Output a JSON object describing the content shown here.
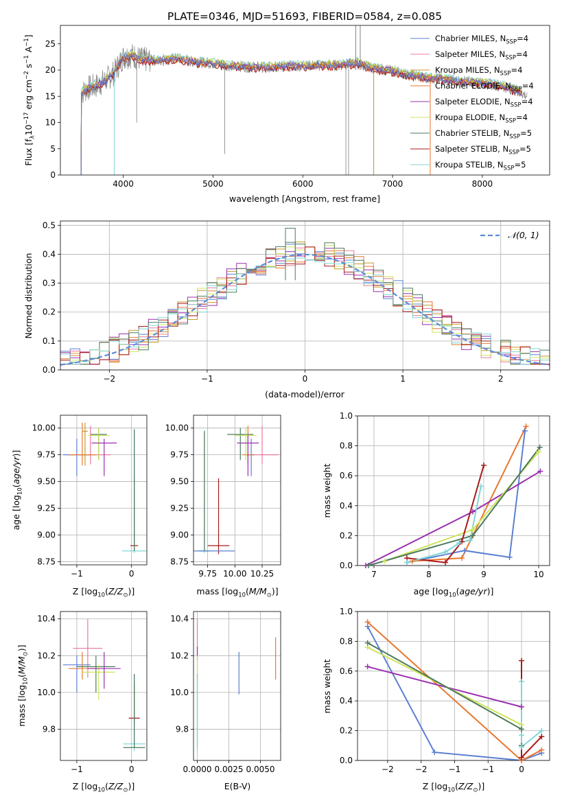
{
  "title": "PLATE=0346, MJD=51693, FIBERID=0584, z=0.085",
  "colors": {
    "chabrier_miles": "#5b7fd1",
    "salpeter_miles": "#e8789e",
    "kroupa_miles": "#c49a2c",
    "chabrier_elodie": "#e8772e",
    "salpeter_elodie": "#9b2fae",
    "kroupa_elodie": "#cfe35a",
    "chabrier_stelib": "#4a7a5a",
    "salpeter_stelib": "#a81818",
    "kroupa_stelib": "#7fd6d6",
    "data": "#7f7f7f",
    "normal": "#5b8bd6"
  },
  "chart_data": [
    {
      "id": "spectrum",
      "type": "line",
      "title": "PLATE=0346, MJD=51693, FIBERID=0584, z=0.085",
      "xlabel": "wavelength [Angstrom, rest frame]",
      "ylabel": "Flux [f_λ 10^-17 erg cm^-2 s^-1 A^-1]",
      "xlim": [
        3300,
        8750
      ],
      "ylim": [
        0,
        28.5
      ],
      "xticks": [
        4000,
        5000,
        6000,
        7000,
        8000
      ],
      "yticks": [
        0,
        5,
        10,
        15,
        20,
        25
      ],
      "grid": false,
      "legend_position": "top-right",
      "legend": [
        "Chabrier MILES, N_SSP=4",
        "Salpeter MILES, N_SSP=4",
        "Kroupa MILES, N_SSP=4",
        "Chabrier ELODIE, N_SSP=4",
        "Salpeter ELODIE, N_SSP=4",
        "Kroupa ELODIE, N_SSP=4",
        "Chabrier STELIB, N_SSP=5",
        "Salpeter STELIB, N_SSP=5",
        "Kroupa STELIB, N_SSP=5"
      ],
      "data_envelope": {
        "x": [
          3530,
          3600,
          3700,
          3800,
          3900,
          4000,
          4100,
          4200,
          4400,
          4600,
          4800,
          5000,
          5200,
          5400,
          5600,
          5800,
          6000,
          6200,
          6400,
          6600,
          6800,
          7000,
          7200,
          7400,
          7600,
          7800,
          8000,
          8200,
          8400,
          8500
        ],
        "y": [
          15.5,
          16.5,
          17.0,
          18.0,
          19.5,
          22.5,
          22.8,
          22.0,
          21.8,
          22.2,
          21.5,
          21.3,
          20.8,
          20.6,
          20.5,
          20.7,
          20.8,
          20.9,
          20.9,
          21.3,
          20.3,
          19.8,
          19.0,
          18.5,
          18.2,
          17.8,
          17.5,
          17.0,
          16.0,
          15.0
        ]
      }
    },
    {
      "id": "residuals",
      "type": "line",
      "xlabel": "(data-model)/error",
      "ylabel": "Normed distribution",
      "xlim": [
        -2.5,
        2.5
      ],
      "ylim": [
        0,
        0.515
      ],
      "xticks": [
        -2,
        -1,
        0,
        1,
        2
      ],
      "yticks": [
        0.0,
        0.1,
        0.2,
        0.3,
        0.4,
        0.5
      ],
      "grid": true,
      "legend_position": "top-right",
      "legend": [
        "𝒩(0, 1)"
      ],
      "normal": {
        "mean": 0,
        "sigma": 1
      }
    },
    {
      "id": "age_vs_Z",
      "type": "scatter",
      "xlabel": "Z [log10(Z/Z⊙)]",
      "ylabel": "age  [log10(age/yr)]",
      "xlim": [
        -1.3,
        0.28
      ],
      "ylim": [
        8.72,
        10.12
      ],
      "xticks": [
        -1,
        0
      ],
      "yticks": [
        8.75,
        9.0,
        9.25,
        9.5,
        9.75,
        10.0
      ],
      "grid": true,
      "points": [
        {
          "model": "salpeter_miles",
          "x": -0.75,
          "y": 9.75,
          "xerr": 0.37,
          "yerr": [
            9.66,
            10.02
          ]
        },
        {
          "model": "chabrier_miles",
          "x": -1.0,
          "y": 9.75,
          "xerr": 0.25,
          "yerr": [
            9.55,
            9.9
          ]
        },
        {
          "model": "chabrier_elodie",
          "x": -0.9,
          "y": 9.75,
          "xerr": 0.25,
          "yerr": [
            9.65,
            10.05
          ]
        },
        {
          "model": "kroupa_miles",
          "x": -0.85,
          "y": 9.97,
          "xerr": 0.05,
          "yerr": [
            9.65,
            10.05
          ]
        },
        {
          "model": "chabrier_stelib",
          "x": -0.6,
          "y": 9.94,
          "xerr": 0.15,
          "yerr": [
            9.7,
            10.0
          ]
        },
        {
          "model": "kroupa_elodie",
          "x": -0.6,
          "y": 9.93,
          "xerr": 0.2,
          "yerr": [
            9.7,
            10.0
          ]
        },
        {
          "model": "salpeter_elodie",
          "x": -0.5,
          "y": 9.86,
          "xerr": 0.23,
          "yerr": [
            9.55,
            9.9
          ]
        },
        {
          "model": "salpeter_stelib",
          "x": 0.05,
          "y": 8.9,
          "xerr": 0.07,
          "yerr": [
            8.85,
            9.53
          ]
        },
        {
          "model": "kroupa_stelib",
          "x": 0.05,
          "y": 8.85,
          "xerr": 0.22,
          "yerr": [
            8.83,
            9.98
          ]
        },
        {
          "model": "chabrier_stelib",
          "x": 0.05,
          "y": 9.97,
          "xerr": 0.0,
          "yerr": [
            8.85,
            9.99
          ]
        }
      ]
    },
    {
      "id": "age_vs_mass",
      "type": "scatter",
      "xlabel": "mass [log10(M/M⊙)]",
      "ylabel": "",
      "xlim": [
        9.62,
        10.42
      ],
      "ylim": [
        8.72,
        10.12
      ],
      "xticks": [
        9.75,
        10.0,
        10.25
      ],
      "xticklabels": [
        "9.75",
        "10.00",
        "10.25"
      ],
      "yticks": [
        8.75,
        9.0,
        9.25,
        9.5,
        9.75,
        10.0
      ],
      "grid": true,
      "points": [
        {
          "model": "salpeter_miles",
          "x": 10.25,
          "y": 9.75,
          "xerr": 0.15,
          "yerr": [
            9.66,
            10.02
          ]
        },
        {
          "model": "chabrier_miles",
          "x": 10.15,
          "y": 9.75,
          "xerr": 0.03,
          "yerr": [
            9.55,
            9.9
          ]
        },
        {
          "model": "chabrier_elodie",
          "x": 10.12,
          "y": 9.75,
          "xerr": 0.05,
          "yerr": [
            9.65,
            10.02
          ]
        },
        {
          "model": "chabrier_stelib",
          "x": 10.05,
          "y": 9.94,
          "xerr": 0.12,
          "yerr": [
            9.7,
            10.0
          ]
        },
        {
          "model": "kroupa_elodie",
          "x": 10.1,
          "y": 9.93,
          "xerr": 0.1,
          "yerr": [
            9.7,
            10.0
          ]
        },
        {
          "model": "salpeter_elodie",
          "x": 10.12,
          "y": 9.86,
          "xerr": 0.1,
          "yerr": [
            9.55,
            9.93
          ]
        },
        {
          "model": "salpeter_stelib",
          "x": 9.85,
          "y": 8.9,
          "xerr": 0.1,
          "yerr": [
            8.82,
            9.53
          ]
        },
        {
          "model": "kroupa_stelib",
          "x": 9.72,
          "y": 8.85,
          "xerr": 0.06,
          "yerr": [
            8.83,
            9.98
          ]
        },
        {
          "model": "chabrier_stelib",
          "x": 9.72,
          "y": 8.85,
          "xerr": 0.04,
          "yerr": [
            8.85,
            9.97
          ]
        },
        {
          "model": "chabrier_miles",
          "x": 9.7,
          "y": 8.85,
          "xerr": 0.3,
          "yerr": [
            8.85,
            8.85
          ]
        }
      ]
    },
    {
      "id": "massweight_vs_age",
      "type": "line",
      "xlabel": "age  [log10(age/yr)]",
      "ylabel": "mass weight",
      "xlim": [
        6.7,
        10.2
      ],
      "ylim": [
        0,
        1.0
      ],
      "xticks": [
        7,
        8,
        9,
        10
      ],
      "yticks": [
        0.0,
        0.2,
        0.4,
        0.6,
        0.8,
        1.0
      ],
      "grid": true,
      "series": [
        {
          "model": "chabrier_miles",
          "x": [
            7.6,
            8.65,
            9.47,
            9.75
          ],
          "y": [
            0.02,
            0.1,
            0.055,
            0.9
          ]
        },
        {
          "model": "chabrier_elodie",
          "x": [
            7.7,
            8.6,
            8.8,
            9.77
          ],
          "y": [
            0.03,
            0.05,
            0.2,
            0.93
          ]
        },
        {
          "model": "salpeter_elodie",
          "x": [
            6.85,
            8.8,
            10.03
          ],
          "y": [
            0.0,
            0.36,
            0.63
          ]
        },
        {
          "model": "kroupa_elodie",
          "x": [
            7.2,
            8.8,
            10.0
          ],
          "y": [
            0.03,
            0.24,
            0.76
          ]
        },
        {
          "model": "chabrier_stelib",
          "x": [
            6.9,
            8.8,
            10.02
          ],
          "y": [
            0.0,
            0.2,
            0.79
          ]
        },
        {
          "model": "salpeter_stelib",
          "x": [
            7.6,
            8.3,
            8.6,
            9.0
          ],
          "y": [
            0.05,
            0.02,
            0.16,
            0.67
          ]
        },
        {
          "model": "kroupa_stelib",
          "x": [
            7.6,
            8.3,
            8.55,
            8.75,
            8.95
          ],
          "y": [
            0.02,
            0.09,
            0.15,
            0.17,
            0.53
          ]
        }
      ]
    },
    {
      "id": "mass_vs_Z",
      "type": "scatter",
      "xlabel": "Z [log10(Z/Z⊙)]",
      "ylabel": "mass [log10(M/M⊙)]",
      "xlim": [
        -1.3,
        0.28
      ],
      "ylim": [
        9.63,
        10.44
      ],
      "xticks": [
        -1,
        0
      ],
      "yticks": [
        9.8,
        10.0,
        10.2,
        10.4
      ],
      "grid": true,
      "points": [
        {
          "model": "salpeter_miles",
          "x": -0.8,
          "y": 10.24,
          "xerr": 0.27,
          "yerr": [
            10.08,
            10.4
          ]
        },
        {
          "model": "chabrier_miles",
          "x": -1.0,
          "y": 10.15,
          "xerr": 0.25,
          "yerr": [
            10.0,
            10.2
          ]
        },
        {
          "model": "chabrier_elodie",
          "x": -0.9,
          "y": 10.13,
          "xerr": 0.25,
          "yerr": [
            10.07,
            10.22
          ]
        },
        {
          "model": "chabrier_stelib",
          "x": -0.65,
          "y": 10.14,
          "xerr": 0.35,
          "yerr": [
            10.0,
            10.2
          ]
        },
        {
          "model": "kroupa_elodie",
          "x": -0.6,
          "y": 10.11,
          "xerr": 0.3,
          "yerr": [
            9.96,
            10.15
          ]
        },
        {
          "model": "salpeter_elodie",
          "x": -0.5,
          "y": 10.13,
          "xerr": 0.3,
          "yerr": [
            10.02,
            10.22
          ]
        },
        {
          "model": "salpeter_stelib",
          "x": 0.05,
          "y": 9.86,
          "xerr": 0.1,
          "yerr": [
            9.83,
            10.05
          ]
        },
        {
          "model": "kroupa_stelib",
          "x": 0.05,
          "y": 9.72,
          "xerr": 0.2,
          "yerr": [
            9.68,
            10.1
          ]
        },
        {
          "model": "chabrier_stelib",
          "x": 0.05,
          "y": 9.7,
          "xerr": 0.2,
          "yerr": [
            9.7,
            10.1
          ]
        }
      ]
    },
    {
      "id": "mass_vs_ebv",
      "type": "scatter",
      "xlabel": "E(B-V)",
      "ylabel": "",
      "xlim": [
        -0.0003,
        0.0066
      ],
      "ylim": [
        9.63,
        10.44
      ],
      "xticks": [
        0.0,
        0.0025,
        0.005
      ],
      "xticklabels": [
        "0.0000",
        "0.0025",
        "0.0050"
      ],
      "yticks": [
        9.8,
        10.0,
        10.2,
        10.4
      ],
      "grid": true,
      "points": [
        {
          "model": "salpeter_miles",
          "x": 0.0,
          "yerr": [
            10.08,
            10.4
          ]
        },
        {
          "model": "salpeter_elodie",
          "x": 0.0,
          "yerr": [
            10.18,
            10.25
          ]
        },
        {
          "model": "kroupa_elodie",
          "x": 0.0,
          "yerr": [
            10.05,
            10.2
          ]
        },
        {
          "model": "chabrier_stelib",
          "x": 0.0,
          "yerr": [
            9.7,
            10.1
          ]
        },
        {
          "model": "kroupa_stelib",
          "x": 0.0,
          "yerr": [
            9.68,
            10.1
          ]
        },
        {
          "model": "chabrier_miles",
          "x": 0.0033,
          "yerr": [
            9.99,
            10.22
          ]
        },
        {
          "model": "chabrier_elodie",
          "x": 0.0062,
          "yerr": [
            10.07,
            10.3
          ]
        }
      ]
    },
    {
      "id": "massweight_vs_Z",
      "type": "line",
      "xlabel": "Z [log10(Z/Z⊙)]",
      "ylabel": "mass weight",
      "xlim": [
        -2.45,
        0.42
      ],
      "ylim": [
        0,
        1.0
      ],
      "xticks": [
        -2.0,
        -1.5,
        -1.0,
        -0.5,
        0.0
      ],
      "yticks": [
        0.0,
        0.2,
        0.4,
        0.6,
        0.8,
        1.0
      ],
      "grid": true,
      "series": [
        {
          "model": "chabrier_miles",
          "x": [
            -2.3,
            -1.3,
            0.0,
            0.3
          ],
          "y": [
            0.9,
            0.055,
            0.0,
            0.05
          ]
        },
        {
          "model": "chabrier_elodie",
          "x": [
            -2.3,
            0.0,
            0.3
          ],
          "y": [
            0.93,
            0.0,
            0.07
          ]
        },
        {
          "model": "salpeter_elodie",
          "x": [
            -2.3,
            0.0
          ],
          "y": [
            0.63,
            0.36
          ]
        },
        {
          "model": "kroupa_elodie",
          "x": [
            -2.3,
            0.0
          ],
          "y": [
            0.76,
            0.24
          ]
        },
        {
          "model": "chabrier_stelib",
          "x": [
            -2.3,
            0.0,
            0.0
          ],
          "y": [
            0.79,
            0.21,
            0.1
          ]
        },
        {
          "model": "salpeter_stelib",
          "x": [
            0.0,
            0.0,
            0.3
          ],
          "y": [
            0.67,
            0.02,
            0.16
          ]
        },
        {
          "model": "kroupa_stelib",
          "x": [
            0.0,
            0.0,
            0.0,
            0.3
          ],
          "y": [
            0.53,
            0.17,
            0.09,
            0.2
          ]
        }
      ]
    }
  ]
}
